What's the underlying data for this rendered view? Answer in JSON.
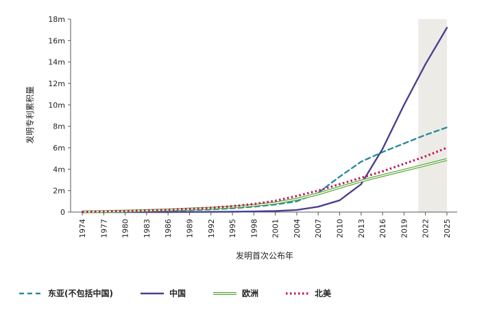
{
  "chart_data": {
    "type": "line",
    "ylabel": "发明专利累积量",
    "xlabel": "发明首次公布年",
    "ylim": [
      0,
      18
    ],
    "y_ticks": [
      "0",
      "2m",
      "4m",
      "6m",
      "8m",
      "10m",
      "12m",
      "14m",
      "16m",
      "18m"
    ],
    "x_ticks": [
      "1974",
      "1977",
      "1980",
      "1983",
      "1986",
      "1989",
      "1992",
      "1995",
      "1998",
      "2001",
      "2004",
      "2007",
      "2010",
      "2013",
      "2016",
      "2019",
      "2022",
      "2025"
    ],
    "shaded_range": [
      2021,
      2025
    ],
    "x": [
      1974,
      1977,
      1980,
      1983,
      1986,
      1989,
      1992,
      1995,
      1998,
      2001,
      2004,
      2007,
      2010,
      2013,
      2016,
      2019,
      2022,
      2025
    ],
    "series": [
      {
        "name": "东亚(不包括中国)",
        "color": "#2a8aa0",
        "style": "dashed",
        "values": [
          0.02,
          0.03,
          0.05,
          0.08,
          0.12,
          0.18,
          0.25,
          0.35,
          0.5,
          0.7,
          1.0,
          1.8,
          3.3,
          4.7,
          5.6,
          6.4,
          7.2,
          7.9
        ]
      },
      {
        "name": "中国",
        "color": "#4b3f8f",
        "style": "solid",
        "values": [
          0.0,
          0.0,
          0.0,
          0.0,
          0.0,
          0.01,
          0.02,
          0.03,
          0.06,
          0.1,
          0.2,
          0.5,
          1.1,
          2.6,
          5.9,
          10.0,
          13.8,
          17.2
        ]
      },
      {
        "name": "欧洲",
        "color": "#5aa83a",
        "style": "double",
        "values": [
          0.02,
          0.05,
          0.09,
          0.14,
          0.2,
          0.28,
          0.36,
          0.48,
          0.63,
          0.85,
          1.2,
          1.7,
          2.3,
          2.9,
          3.4,
          3.9,
          4.4,
          4.9
        ]
      },
      {
        "name": "北美",
        "color": "#c0195a",
        "style": "dotted",
        "values": [
          0.02,
          0.05,
          0.1,
          0.15,
          0.22,
          0.3,
          0.4,
          0.55,
          0.75,
          1.05,
          1.5,
          2.0,
          2.6,
          3.2,
          3.8,
          4.5,
          5.2,
          6.0
        ]
      }
    ]
  }
}
